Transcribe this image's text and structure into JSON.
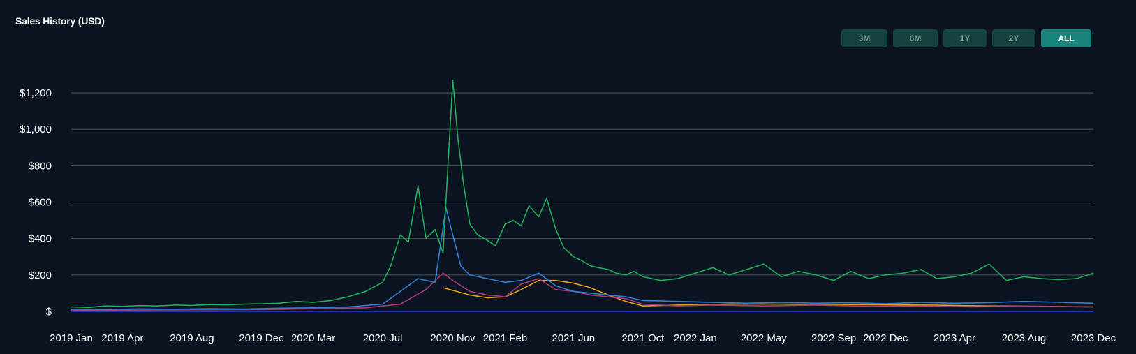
{
  "header": {
    "title": "Sales History (USD)"
  },
  "range_buttons": [
    {
      "label": "3M",
      "active": false
    },
    {
      "label": "6M",
      "active": false
    },
    {
      "label": "1Y",
      "active": false
    },
    {
      "label": "2Y",
      "active": false
    },
    {
      "label": "ALL",
      "active": true
    }
  ],
  "colors": {
    "background": "#0b1420",
    "grid": "#4a5560",
    "green": "#1fae5a",
    "blue": "#2f7fd6",
    "purple": "#a8397a",
    "orange": "#e3a21a",
    "baseline": "#2b3fd6"
  },
  "chart_data": {
    "type": "line",
    "title": "Sales History (USD)",
    "xlabel": "",
    "ylabel": "",
    "ylim": [
      0,
      1200
    ],
    "yticks": [
      {
        "value": 0,
        "label": "$"
      },
      {
        "value": 200,
        "label": "$200"
      },
      {
        "value": 400,
        "label": "$400"
      },
      {
        "value": 600,
        "label": "$600"
      },
      {
        "value": 800,
        "label": "$800"
      },
      {
        "value": 1000,
        "label": "$1,000"
      },
      {
        "value": 1200,
        "label": "$1,200"
      }
    ],
    "xlim": [
      "2019-01-01",
      "2023-12-01"
    ],
    "xticks": [
      {
        "date": "2019-01-01",
        "label": "2019 Jan"
      },
      {
        "date": "2019-04-01",
        "label": "2019 Apr"
      },
      {
        "date": "2019-08-01",
        "label": "2019 Aug"
      },
      {
        "date": "2019-12-01",
        "label": "2019 Dec"
      },
      {
        "date": "2020-03-01",
        "label": "2020 Mar"
      },
      {
        "date": "2020-07-01",
        "label": "2020 Jul"
      },
      {
        "date": "2020-11-01",
        "label": "2020 Nov"
      },
      {
        "date": "2021-02-01",
        "label": "2021 Feb"
      },
      {
        "date": "2021-06-01",
        "label": "2021 Jun"
      },
      {
        "date": "2021-10-01",
        "label": "2021 Oct"
      },
      {
        "date": "2022-01-01",
        "label": "2022 Jan"
      },
      {
        "date": "2022-05-01",
        "label": "2022 May"
      },
      {
        "date": "2022-09-01",
        "label": "2022 Sep"
      },
      {
        "date": "2022-12-01",
        "label": "2022 Dec"
      },
      {
        "date": "2023-04-01",
        "label": "2023 Apr"
      },
      {
        "date": "2023-08-01",
        "label": "2023 Aug"
      },
      {
        "date": "2023-12-01",
        "label": "2023 Dec"
      }
    ],
    "grid": true,
    "series": [
      {
        "color": "green",
        "x": [
          "2019-01-01",
          "2019-02-01",
          "2019-03-01",
          "2019-04-01",
          "2019-05-01",
          "2019-06-01",
          "2019-07-01",
          "2019-08-01",
          "2019-09-01",
          "2019-10-01",
          "2019-11-01",
          "2019-12-01",
          "2020-01-01",
          "2020-02-01",
          "2020-03-01",
          "2020-04-01",
          "2020-05-01",
          "2020-06-01",
          "2020-07-01",
          "2020-07-15",
          "2020-08-01",
          "2020-08-15",
          "2020-09-01",
          "2020-09-15",
          "2020-10-01",
          "2020-10-15",
          "2020-10-25",
          "2020-11-01",
          "2020-11-10",
          "2020-11-20",
          "2020-12-01",
          "2020-12-15",
          "2021-01-01",
          "2021-01-15",
          "2021-02-01",
          "2021-02-15",
          "2021-03-01",
          "2021-03-15",
          "2021-04-01",
          "2021-04-15",
          "2021-05-01",
          "2021-05-15",
          "2021-06-01",
          "2021-06-15",
          "2021-07-01",
          "2021-07-15",
          "2021-08-01",
          "2021-08-15",
          "2021-09-01",
          "2021-09-15",
          "2021-10-01",
          "2021-11-01",
          "2021-12-01",
          "2022-01-01",
          "2022-02-01",
          "2022-03-01",
          "2022-04-01",
          "2022-05-01",
          "2022-06-01",
          "2022-07-01",
          "2022-08-01",
          "2022-09-01",
          "2022-10-01",
          "2022-11-01",
          "2022-12-01",
          "2023-01-01",
          "2023-02-01",
          "2023-03-01",
          "2023-04-01",
          "2023-05-01",
          "2023-06-01",
          "2023-07-01",
          "2023-08-01",
          "2023-09-01",
          "2023-10-01",
          "2023-11-01",
          "2023-12-01"
        ],
        "values": [
          25,
          22,
          30,
          28,
          32,
          30,
          35,
          33,
          38,
          36,
          40,
          42,
          45,
          55,
          50,
          60,
          80,
          110,
          160,
          250,
          420,
          380,
          690,
          400,
          450,
          320,
          880,
          1270,
          950,
          700,
          480,
          420,
          390,
          360,
          480,
          500,
          470,
          580,
          520,
          620,
          450,
          350,
          300,
          280,
          250,
          240,
          230,
          210,
          200,
          220,
          190,
          170,
          180,
          210,
          240,
          200,
          230,
          260,
          190,
          220,
          200,
          170,
          220,
          180,
          200,
          210,
          230,
          180,
          190,
          210,
          260,
          170,
          190,
          180,
          175,
          180,
          210
        ]
      },
      {
        "color": "blue",
        "x": [
          "2019-01-01",
          "2019-03-01",
          "2019-05-01",
          "2019-07-01",
          "2019-09-01",
          "2019-11-01",
          "2020-01-01",
          "2020-03-01",
          "2020-05-01",
          "2020-07-01",
          "2020-08-01",
          "2020-09-01",
          "2020-10-01",
          "2020-10-20",
          "2020-11-01",
          "2020-11-15",
          "2020-12-01",
          "2021-01-01",
          "2021-02-01",
          "2021-03-01",
          "2021-04-01",
          "2021-05-01",
          "2021-06-01",
          "2021-07-01",
          "2021-08-01",
          "2021-09-01",
          "2021-10-01",
          "2021-12-01",
          "2022-02-01",
          "2022-04-01",
          "2022-06-01",
          "2022-08-01",
          "2022-10-01",
          "2022-12-01",
          "2023-02-01",
          "2023-04-01",
          "2023-06-01",
          "2023-08-01",
          "2023-10-01",
          "2023-12-01"
        ],
        "values": [
          12,
          10,
          14,
          12,
          15,
          13,
          18,
          20,
          25,
          40,
          110,
          180,
          160,
          570,
          420,
          250,
          200,
          180,
          160,
          170,
          210,
          140,
          110,
          100,
          90,
          80,
          60,
          55,
          50,
          45,
          50,
          45,
          48,
          42,
          50,
          45,
          48,
          55,
          50,
          45
        ]
      },
      {
        "color": "purple",
        "x": [
          "2019-01-01",
          "2019-06-01",
          "2019-12-01",
          "2020-03-01",
          "2020-06-01",
          "2020-08-01",
          "2020-09-15",
          "2020-10-15",
          "2020-11-01",
          "2020-12-01",
          "2021-01-01",
          "2021-02-01",
          "2021-03-01",
          "2021-04-01",
          "2021-05-01",
          "2021-06-01",
          "2021-07-01",
          "2021-08-01",
          "2021-09-01",
          "2021-10-01",
          "2021-12-01",
          "2022-02-01",
          "2022-05-01",
          "2022-08-01",
          "2022-11-01",
          "2023-02-01",
          "2023-05-01",
          "2023-08-01",
          "2023-12-01"
        ],
        "values": [
          5,
          8,
          10,
          15,
          20,
          40,
          120,
          210,
          170,
          110,
          90,
          80,
          150,
          180,
          120,
          110,
          90,
          80,
          70,
          40,
          30,
          35,
          30,
          35,
          28,
          30,
          25,
          28,
          25
        ]
      },
      {
        "color": "orange",
        "x": [
          "2020-10-15",
          "2020-12-01",
          "2021-01-01",
          "2021-02-01",
          "2021-03-01",
          "2021-04-01",
          "2021-05-01",
          "2021-06-01",
          "2021-07-01",
          "2021-08-01",
          "2021-09-01",
          "2021-10-01",
          "2021-12-01",
          "2022-03-01",
          "2022-06-01",
          "2022-09-01",
          "2022-12-01",
          "2023-03-01",
          "2023-06-01",
          "2023-09-01",
          "2023-12-01"
        ],
        "values": [
          130,
          90,
          75,
          80,
          120,
          170,
          170,
          155,
          130,
          90,
          55,
          30,
          35,
          40,
          40,
          38,
          36,
          34,
          30,
          28,
          25
        ]
      }
    ]
  }
}
